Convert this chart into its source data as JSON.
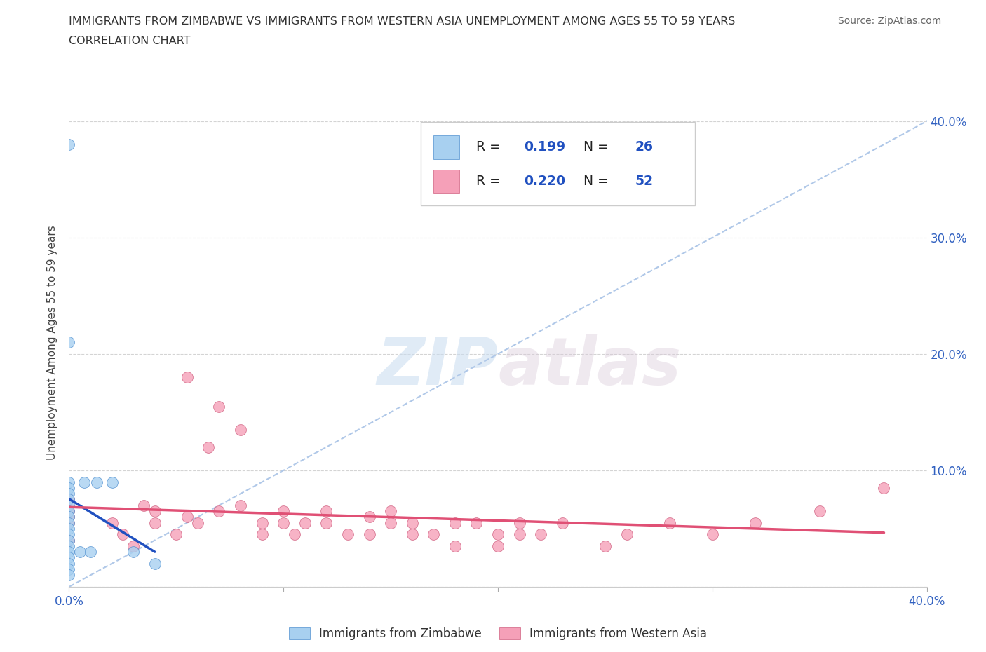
{
  "title_line1": "IMMIGRANTS FROM ZIMBABWE VS IMMIGRANTS FROM WESTERN ASIA UNEMPLOYMENT AMONG AGES 55 TO 59 YEARS",
  "title_line2": "CORRELATION CHART",
  "source": "Source: ZipAtlas.com",
  "ylabel": "Unemployment Among Ages 55 to 59 years",
  "xlim": [
    0.0,
    0.4
  ],
  "ylim": [
    0.0,
    0.42
  ],
  "r_zimbabwe": 0.199,
  "n_zimbabwe": 26,
  "r_western_asia": 0.22,
  "n_western_asia": 52,
  "color_zimbabwe": "#a8d0f0",
  "color_western_asia": "#f5a0b8",
  "edge_zimbabwe": "#5090d0",
  "edge_western_asia": "#d06080",
  "trendline_zimbabwe_color": "#2050c0",
  "trendline_western_asia_color": "#e05075",
  "diagonal_color": "#b0c8e8",
  "background_color": "#ffffff",
  "grid_color": "#d0d0d0",
  "zimbabwe_x": [
    0.0,
    0.0,
    0.0,
    0.0,
    0.0,
    0.0,
    0.0,
    0.0,
    0.0,
    0.0,
    0.0,
    0.0,
    0.0,
    0.0,
    0.0,
    0.0,
    0.0,
    0.0,
    0.0,
    0.005,
    0.007,
    0.01,
    0.013,
    0.02,
    0.03,
    0.04
  ],
  "zimbabwe_y": [
    0.38,
    0.21,
    0.09,
    0.085,
    0.08,
    0.075,
    0.07,
    0.065,
    0.06,
    0.055,
    0.05,
    0.045,
    0.04,
    0.035,
    0.03,
    0.025,
    0.02,
    0.015,
    0.01,
    0.03,
    0.09,
    0.03,
    0.09,
    0.09,
    0.03,
    0.02
  ],
  "western_asia_x": [
    0.0,
    0.0,
    0.0,
    0.0,
    0.0,
    0.02,
    0.025,
    0.03,
    0.035,
    0.04,
    0.04,
    0.05,
    0.055,
    0.055,
    0.06,
    0.065,
    0.07,
    0.07,
    0.08,
    0.08,
    0.09,
    0.09,
    0.1,
    0.1,
    0.105,
    0.11,
    0.12,
    0.12,
    0.13,
    0.14,
    0.14,
    0.15,
    0.15,
    0.16,
    0.16,
    0.17,
    0.18,
    0.18,
    0.19,
    0.2,
    0.2,
    0.21,
    0.21,
    0.22,
    0.23,
    0.25,
    0.26,
    0.28,
    0.3,
    0.32,
    0.35,
    0.38
  ],
  "western_asia_y": [
    0.075,
    0.065,
    0.06,
    0.055,
    0.04,
    0.055,
    0.045,
    0.035,
    0.07,
    0.065,
    0.055,
    0.045,
    0.18,
    0.06,
    0.055,
    0.12,
    0.155,
    0.065,
    0.135,
    0.07,
    0.055,
    0.045,
    0.065,
    0.055,
    0.045,
    0.055,
    0.065,
    0.055,
    0.045,
    0.06,
    0.045,
    0.065,
    0.055,
    0.055,
    0.045,
    0.045,
    0.035,
    0.055,
    0.055,
    0.045,
    0.035,
    0.055,
    0.045,
    0.045,
    0.055,
    0.035,
    0.045,
    0.055,
    0.045,
    0.055,
    0.065,
    0.085
  ],
  "watermark_zip": "ZIP",
  "watermark_atlas": "atlas",
  "legend_r_color": "#2050c0",
  "legend_n_color": "#2050c0"
}
